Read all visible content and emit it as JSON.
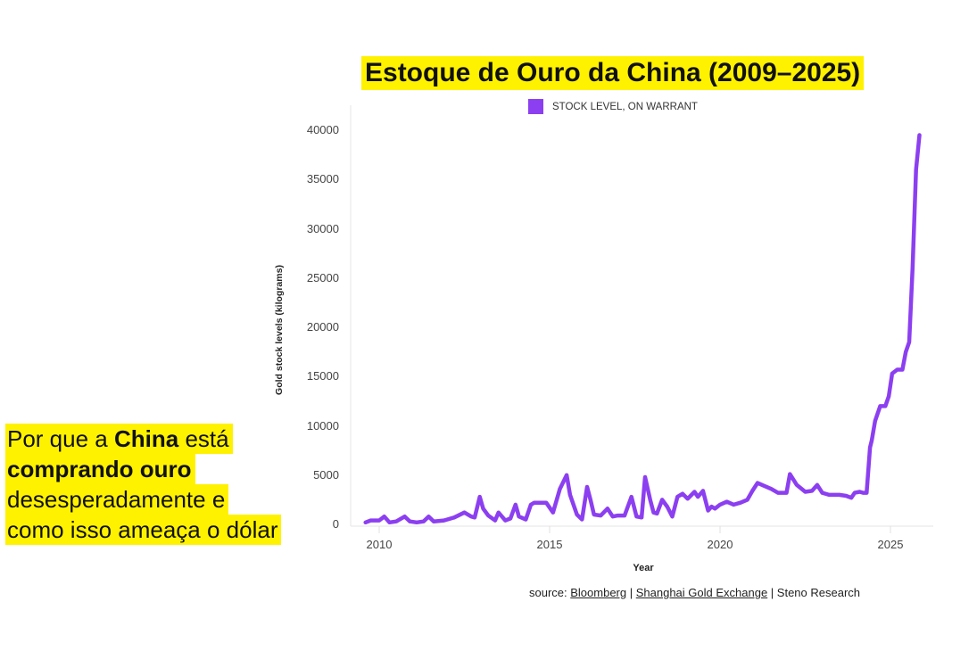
{
  "title": "Estoque de Ouro da China (2009–2025)",
  "caption": {
    "line1_pre": "Por que a ",
    "line1_bold": "China",
    "line1_post": " está",
    "line2_bold": "comprando ouro",
    "line3": "desesperadamente e",
    "line4": "como isso ameaça o dólar"
  },
  "source": {
    "prefix": "source: ",
    "link1": "Bloomberg",
    "sep1": " | ",
    "link2": "Shanghai Gold Exchange",
    "sep2": " | ",
    "suffix": "Steno Research"
  },
  "colors": {
    "line": "#8c3ff0",
    "highlight": "#fff200"
  },
  "chart_data": {
    "type": "line",
    "title": "Estoque de Ouro da China (2009–2025)",
    "xlabel": "Year",
    "ylabel": "Gold stock levels (kilograms)",
    "legend": [
      "STOCK LEVEL, ON WARRANT"
    ],
    "legend_position": "top",
    "xlim": [
      2009.6,
      2026.2
    ],
    "ylim": [
      0,
      42000
    ],
    "yticks": [
      0,
      5000,
      10000,
      15000,
      20000,
      25000,
      30000,
      35000,
      40000
    ],
    "xticks": [
      2010,
      2015,
      2020,
      2025
    ],
    "grid": false,
    "series": [
      {
        "name": "STOCK LEVEL, ON WARRANT",
        "x": [
          2009.6,
          2009.75,
          2010.0,
          2010.15,
          2010.3,
          2010.5,
          2010.75,
          2010.9,
          2011.1,
          2011.3,
          2011.45,
          2011.6,
          2011.9,
          2012.2,
          2012.5,
          2012.7,
          2012.8,
          2012.95,
          2013.05,
          2013.2,
          2013.4,
          2013.5,
          2013.7,
          2013.85,
          2014.0,
          2014.1,
          2014.3,
          2014.45,
          2014.55,
          2014.9,
          2015.1,
          2015.3,
          2015.5,
          2015.6,
          2015.8,
          2015.95,
          2016.1,
          2016.2,
          2016.3,
          2016.5,
          2016.7,
          2016.85,
          2017.0,
          2017.2,
          2017.4,
          2017.55,
          2017.7,
          2017.8,
          2017.95,
          2018.05,
          2018.15,
          2018.3,
          2018.45,
          2018.6,
          2018.75,
          2018.9,
          2019.05,
          2019.25,
          2019.35,
          2019.5,
          2019.65,
          2019.75,
          2019.85,
          2020.0,
          2020.2,
          2020.4,
          2020.6,
          2020.8,
          2020.95,
          2021.1,
          2021.3,
          2021.5,
          2021.7,
          2021.95,
          2022.05,
          2022.25,
          2022.5,
          2022.7,
          2022.85,
          2023.0,
          2023.2,
          2023.5,
          2023.7,
          2023.85,
          2023.95,
          2024.1,
          2024.2,
          2024.3,
          2024.4,
          2024.45,
          2024.55,
          2024.7,
          2024.85,
          2024.95,
          2025.05,
          2025.2,
          2025.35,
          2025.45,
          2025.55,
          2025.65,
          2025.75,
          2025.85
        ],
        "values": [
          200,
          400,
          400,
          800,
          200,
          300,
          800,
          300,
          200,
          300,
          800,
          300,
          400,
          700,
          1200,
          800,
          700,
          2800,
          1600,
          900,
          400,
          1200,
          400,
          600,
          2000,
          800,
          500,
          2000,
          2200,
          2200,
          1200,
          3600,
          5000,
          3000,
          1000,
          500,
          3800,
          2500,
          1000,
          900,
          1600,
          800,
          900,
          900,
          2800,
          800,
          700,
          4800,
          2500,
          1200,
          1100,
          2500,
          1800,
          800,
          2800,
          3100,
          2600,
          3300,
          2800,
          3400,
          1400,
          1800,
          1600,
          2000,
          2300,
          2000,
          2200,
          2500,
          3400,
          4200,
          3900,
          3600,
          3200,
          3200,
          5100,
          4000,
          3300,
          3400,
          4000,
          3200,
          3000,
          3000,
          2900,
          2700,
          3200,
          3300,
          3200,
          3200,
          7800,
          8500,
          10500,
          12000,
          12000,
          13000,
          15300,
          15700,
          15700,
          17500,
          18500,
          26000,
          36000,
          39500
        ]
      }
    ]
  }
}
